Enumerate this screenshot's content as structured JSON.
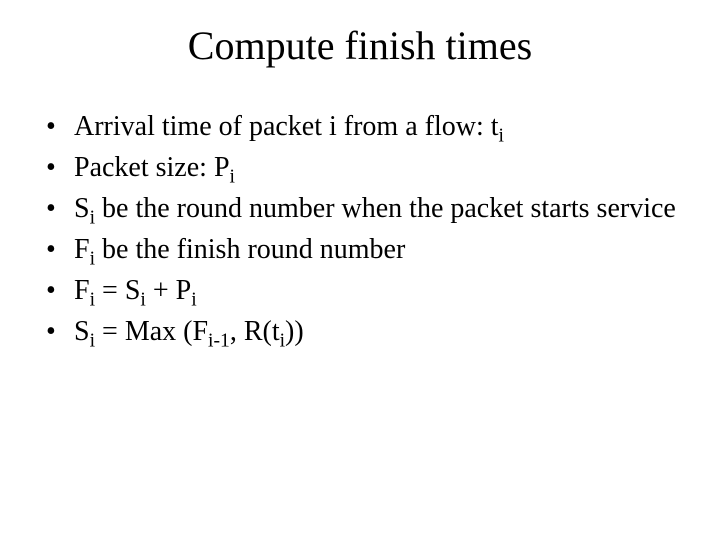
{
  "slide": {
    "title": "Compute finish times",
    "title_fontsize": 40,
    "body_fontsize": 28,
    "background_color": "#ffffff",
    "text_color": "#000000",
    "font_family": "Times New Roman",
    "bullets": [
      {
        "parts": [
          {
            "t": "Arrival time of packet i from a flow: t"
          },
          {
            "t": "i",
            "sub": true
          }
        ]
      },
      {
        "parts": [
          {
            "t": "Packet size: P"
          },
          {
            "t": "i",
            "sub": true
          }
        ]
      },
      {
        "parts": [
          {
            "t": "S"
          },
          {
            "t": "i",
            "sub": true
          },
          {
            "t": " be the round number when the packet starts service"
          }
        ]
      },
      {
        "parts": [
          {
            "t": "F"
          },
          {
            "t": "i",
            "sub": true
          },
          {
            "t": " be the finish round number"
          }
        ]
      },
      {
        "parts": [
          {
            "t": "F"
          },
          {
            "t": "i",
            "sub": true
          },
          {
            "t": " = S"
          },
          {
            "t": "i",
            "sub": true
          },
          {
            "t": " + P"
          },
          {
            "t": "i",
            "sub": true
          }
        ]
      },
      {
        "parts": [
          {
            "t": "S"
          },
          {
            "t": "i",
            "sub": true
          },
          {
            "t": " = Max (F"
          },
          {
            "t": "i-1",
            "sub": true
          },
          {
            "t": ", R(t"
          },
          {
            "t": "i",
            "sub": true
          },
          {
            "t": "))"
          }
        ]
      }
    ]
  }
}
